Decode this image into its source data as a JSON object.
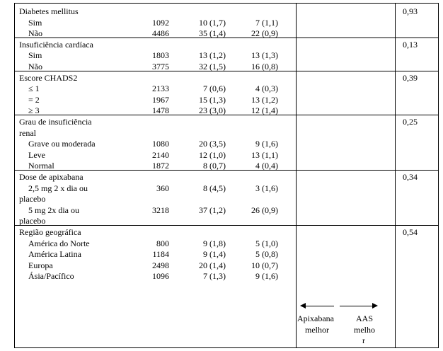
{
  "groups": [
    {
      "title": "Diabetes mellitus",
      "p": "0,93",
      "rows": [
        {
          "label": "Sim",
          "n": "1092",
          "a": "10 (1,7)",
          "b": "7 (1,1)"
        },
        {
          "label": "Não",
          "n": "4486",
          "a": "35 (1,4)",
          "b": "22 (0,9)"
        }
      ]
    },
    {
      "title": "Insuficiência cardíaca",
      "p": "0,13",
      "rows": [
        {
          "label": "Sim",
          "n": "1803",
          "a": "13 (1,2)",
          "b": "13 (1,3)"
        },
        {
          "label": "Não",
          "n": "3775",
          "a": "32 (1,5)",
          "b": "16 (0,8)"
        }
      ]
    },
    {
      "title": "Escore CHADS2",
      "p": "0,39",
      "rows": [
        {
          "label": "≤ 1",
          "n": "2133",
          "a": "7 (0,6)",
          "b": "4 (0,3)"
        },
        {
          "label": "= 2",
          "n": "1967",
          "a": "15 (1,3)",
          "b": "13 (1,2)"
        },
        {
          "label": "≥ 3",
          "n": "1478",
          "a": "23 (3,0)",
          "b": "12 (1,4)"
        }
      ]
    },
    {
      "title": "Grau de insuficiência",
      "title2": "renal",
      "p": "0,25",
      "rows": [
        {
          "label": "Grave ou moderada",
          "n": "1080",
          "a": "20 (3,5)",
          "b": "9 (1,6)"
        },
        {
          "label": "Leve",
          "n": "2140",
          "a": "12 (1,0)",
          "b": "13 (1,1)"
        },
        {
          "label": "Normal",
          "n": "1872",
          "a": "8 (0,7)",
          "b": "4 (0,4)"
        }
      ]
    },
    {
      "title": "Dose de apixabana",
      "p": "0,34",
      "rows": [
        {
          "label": "2,5 mg 2 x dia ou",
          "label2": "placebo",
          "n": "360",
          "a": "8 (4,5)",
          "b": "3 (1,6)"
        },
        {
          "label": "5 mg 2x dia ou",
          "label2": "placebo",
          "n": "3218",
          "a": "37 (1,2)",
          "b": "26 (0,9)"
        }
      ]
    },
    {
      "title": "Região geográfica",
      "p": "0,54",
      "rows": [
        {
          "label": "América do Norte",
          "n": "800",
          "a": "9 (1,8)",
          "b": "5 (1,0)"
        },
        {
          "label": "América Latina",
          "n": "1184",
          "a": "9 (1,4)",
          "b": "5 (0,8)"
        },
        {
          "label": "Europa",
          "n": "2498",
          "a": "20 (1,4)",
          "b": "10 (0,7)"
        },
        {
          "label": "Ásia/Pacífico",
          "n": "1096",
          "a": "7 (1,3)",
          "b": "9 (1,6)"
        }
      ]
    }
  ],
  "footer": {
    "left_line1": "Apixabana",
    "left_line2": "melhor",
    "right_line1": "AAS",
    "right_line2": "melho",
    "right_line3": "r"
  }
}
